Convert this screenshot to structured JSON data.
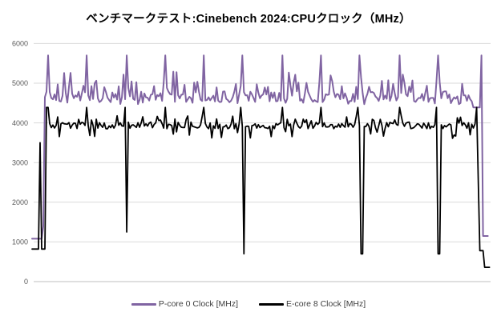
{
  "title": "ベンチマークテスト:Cinebench 2024:CPUクロック（MHz）",
  "colors": {
    "background": "#ffffff",
    "title": "#000000",
    "gridline": "#d9d9d9",
    "zero_axis": "#bfbfbf",
    "tick_label": "#595959",
    "legend_label": "#3f3f3f",
    "p_core": "#8064a2",
    "e_core": "#000000"
  },
  "y_axis": {
    "min": 0,
    "max": 6000,
    "tick_step": 1000,
    "tick_labels": [
      "0",
      "1000",
      "2000",
      "3000",
      "4000",
      "5000",
      "6000"
    ]
  },
  "x_axis": {
    "tick_labels_visible": false
  },
  "legend": {
    "items": [
      {
        "label": "P-core 0 Clock [MHz]",
        "series": "p_core"
      },
      {
        "label": "E-core 8 Clock [MHz]",
        "series": "e_core"
      }
    ]
  },
  "chart_data": {
    "type": "line",
    "title": "ベンチマークテスト:Cinebench 2024:CPUクロック（MHz）",
    "xlabel": "",
    "ylabel": "",
    "ylim": [
      0,
      6000
    ],
    "grid": true,
    "legend_position": "bottom",
    "noise_seed": 20240,
    "time_range": [
      0,
      600
    ],
    "series": [
      {
        "name": "P-core 0 Clock [MHz]",
        "color": "#8064a2",
        "summary": {
          "load_baseline_mhz": 4650,
          "noise_band_mhz": [
            4500,
            5100
          ],
          "boost_spike_mhz": 5700,
          "idle_start_mhz": 1080,
          "idle_end_mhz": 1150
        },
        "segments": [
          {
            "type": "flat",
            "t": [
              0,
              14.5
            ],
            "mhz": 1080
          },
          {
            "type": "ramp",
            "t": [
              14.5,
              16.8
            ],
            "from": 1080,
            "to": 4650
          },
          {
            "type": "noise",
            "t": [
              16.8,
              577
            ],
            "base": 4655,
            "jitter": 140,
            "blips": [
              {
                "p": 0.22,
                "mhz": [
                  4880,
                  5080
                ]
              },
              {
                "p": 0.05,
                "mhz": [
                  5120,
                  5320
                ]
              },
              {
                "p": 0.12,
                "mhz": [
                  4470,
                  4560
                ]
              }
            ]
          },
          {
            "type": "flat",
            "t": [
              577,
              588.5
            ],
            "mhz": 4390
          },
          {
            "type": "flat",
            "t": [
              589.5,
              596.5
            ],
            "mhz": 1150
          }
        ],
        "spikes": [
          {
            "t": [
              21,
              72,
              123,
              174,
              225,
              276,
              327,
              378,
              429,
              480,
              531,
              588
            ],
            "mhz": 5700
          }
        ],
        "dips": []
      },
      {
        "name": "E-core 8 Clock [MHz]",
        "color": "#000000",
        "summary": {
          "load_baseline_mhz": 3930,
          "noise_band_mhz": [
            3600,
            4180
          ],
          "work_spike_mhz": 4390,
          "deep_dip_mhz": [
            1250,
            700,
            700,
            700
          ],
          "idle_start_mhz": 820,
          "idle_end_mhz": 360
        },
        "segments": [
          {
            "type": "flat",
            "t": [
              0,
              16.8
            ],
            "mhz": 820
          },
          {
            "type": "noise",
            "t": [
              16.8,
              583.5
            ],
            "base": 3935,
            "jitter": 85,
            "blips": [
              {
                "p": 0.1,
                "mhz": [
                  4050,
                  4180
                ]
              },
              {
                "p": 0.13,
                "mhz": [
                  3600,
                  3790
                ]
              }
            ]
          },
          {
            "type": "flat",
            "t": [
              584.5,
              591
            ],
            "mhz": 780
          },
          {
            "type": "flat",
            "t": [
              591,
              600
            ],
            "mhz": 360
          }
        ],
        "spikes": [
          {
            "t": [
              10
            ],
            "mhz": 3500
          },
          {
            "t": [
              18.5,
              21,
              72,
              121,
              174,
              225,
              274,
              327,
              378,
              427,
              480,
              529,
              582.5
            ],
            "mhz": 4390
          }
        ],
        "dips": [
          {
            "t": [
              124.5,
              277.5,
              431.5,
              532.5
            ],
            "mhz": [
              1250,
              700,
              700,
              700
            ]
          }
        ]
      }
    ]
  }
}
